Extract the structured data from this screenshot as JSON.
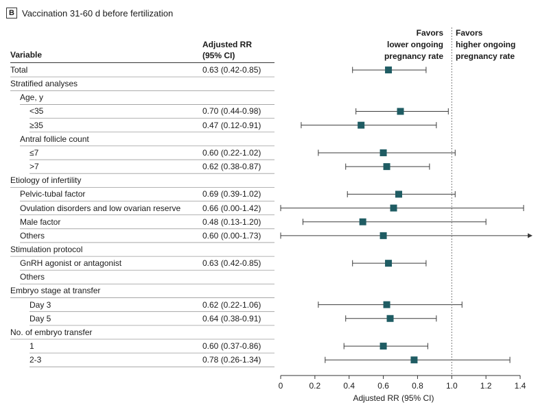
{
  "panel": {
    "letter": "B",
    "title": "Vaccination 31-60 d before fertilization"
  },
  "headers": {
    "variable": "Variable",
    "rr_line1": "Adjusted RR",
    "rr_line2": "(95% CI)",
    "favors_left": [
      "Favors",
      "lower ongoing",
      "pregnancy rate"
    ],
    "favors_right": [
      "Favors",
      "higher ongoing",
      "pregnancy rate"
    ]
  },
  "chart_data": {
    "type": "forest",
    "xlabel": "Adjusted RR (95% CI)",
    "xlim": [
      0,
      1.4
    ],
    "xticks": [
      "0",
      "0.2",
      "0.4",
      "0.6",
      "0.8",
      "1.0",
      "1.2",
      "1.4"
    ],
    "reference_line": 1.0,
    "rows": [
      {
        "label": "Total",
        "indent": 0,
        "ci_text": "0.63 (0.42-0.85)",
        "rr": 0.63,
        "lo": 0.42,
        "hi": 0.85
      },
      {
        "label": "Stratified analyses",
        "indent": 0,
        "ci_text": ""
      },
      {
        "label": "Age, y",
        "indent": 1,
        "ci_text": ""
      },
      {
        "label": "<35",
        "indent": 2,
        "ci_text": "0.70 (0.44-0.98)",
        "rr": 0.7,
        "lo": 0.44,
        "hi": 0.98
      },
      {
        "label": "≥35",
        "indent": 2,
        "ci_text": "0.47 (0.12-0.91)",
        "rr": 0.47,
        "lo": 0.12,
        "hi": 0.91
      },
      {
        "label": "Antral follicle count",
        "indent": 1,
        "ci_text": ""
      },
      {
        "label": "≤7",
        "indent": 2,
        "ci_text": "0.60 (0.22-1.02)",
        "rr": 0.6,
        "lo": 0.22,
        "hi": 1.02
      },
      {
        "label": ">7",
        "indent": 2,
        "ci_text": "0.62 (0.38-0.87)",
        "rr": 0.62,
        "lo": 0.38,
        "hi": 0.87
      },
      {
        "label": "Etiology of infertility",
        "indent": 0,
        "ci_text": ""
      },
      {
        "label": "Pelvic-tubal factor",
        "indent": 1,
        "ci_text": "0.69 (0.39-1.02)",
        "rr": 0.69,
        "lo": 0.39,
        "hi": 1.02
      },
      {
        "label": "Ovulation disorders and low ovarian reserve",
        "indent": 1,
        "ci_text": "0.66 (0.00-1.42)",
        "rr": 0.66,
        "lo": 0.0,
        "hi": 1.42
      },
      {
        "label": "Male factor",
        "indent": 1,
        "ci_text": "0.48 (0.13-1.20)",
        "rr": 0.48,
        "lo": 0.13,
        "hi": 1.2
      },
      {
        "label": "Others",
        "indent": 1,
        "ci_text": "0.60 (0.00-1.73)",
        "rr": 0.6,
        "lo": 0.0,
        "hi": 1.73,
        "arrow_right": true
      },
      {
        "label": "Stimulation protocol",
        "indent": 0,
        "ci_text": ""
      },
      {
        "label": "GnRH agonist or antagonist",
        "indent": 1,
        "ci_text": "0.63 (0.42-0.85)",
        "rr": 0.63,
        "lo": 0.42,
        "hi": 0.85
      },
      {
        "label": "Others",
        "indent": 1,
        "ci_text": ""
      },
      {
        "label": "Embryo stage at transfer",
        "indent": 0,
        "ci_text": ""
      },
      {
        "label": "Day 3",
        "indent": 2,
        "ci_text": "0.62 (0.22-1.06)",
        "rr": 0.62,
        "lo": 0.22,
        "hi": 1.06
      },
      {
        "label": "Day 5",
        "indent": 2,
        "ci_text": "0.64 (0.38-0.91)",
        "rr": 0.64,
        "lo": 0.38,
        "hi": 0.91
      },
      {
        "label": "No. of embryo transfer",
        "indent": 0,
        "ci_text": ""
      },
      {
        "label": "1",
        "indent": 2,
        "ci_text": "0.60 (0.37-0.86)",
        "rr": 0.6,
        "lo": 0.37,
        "hi": 0.86
      },
      {
        "label": "2-3",
        "indent": 2,
        "ci_text": "0.78 (0.26-1.34)",
        "rr": 0.78,
        "lo": 0.26,
        "hi": 1.34
      }
    ]
  },
  "colors": {
    "marker": "#1f5c63",
    "line": "#3a3a3a",
    "rule": "#9a9a9a"
  }
}
